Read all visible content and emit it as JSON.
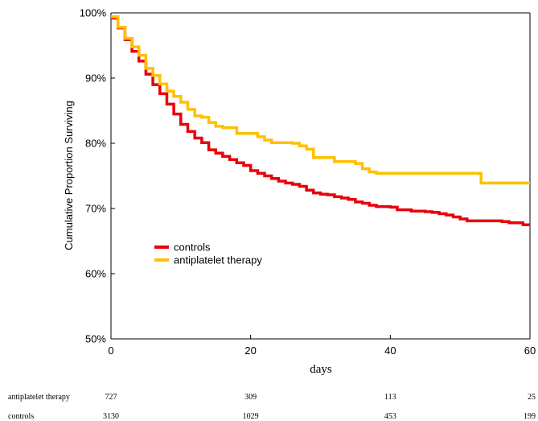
{
  "chart_data": {
    "type": "line",
    "step": true,
    "xlabel": "days",
    "ylabel": "Cumulative Proportion Surviving",
    "xlim": [
      0,
      60
    ],
    "ylim": [
      50,
      100
    ],
    "x_ticks": [
      0,
      20,
      40,
      60
    ],
    "y_ticks": [
      50,
      60,
      70,
      80,
      90,
      100
    ],
    "y_tick_labels": [
      "50%",
      "60%",
      "70%",
      "80%",
      "90%",
      "100%"
    ],
    "grid": false,
    "legend_position": "middle-left",
    "series": [
      {
        "name": "controls",
        "color": "#e8000b",
        "x": [
          0,
          1,
          2,
          3,
          4,
          5,
          6,
          7,
          8,
          9,
          10,
          11,
          12,
          13,
          14,
          15,
          16,
          17,
          18,
          19,
          20,
          21,
          22,
          23,
          24,
          25,
          26,
          27,
          28,
          29,
          30,
          31,
          32,
          33,
          34,
          35,
          36,
          37,
          38,
          40,
          41,
          43,
          45,
          46,
          47,
          48,
          49,
          50,
          51,
          56,
          57,
          59,
          60
        ],
        "y": [
          99.2,
          97.7,
          95.9,
          94.1,
          92.6,
          90.6,
          89.0,
          87.6,
          86.0,
          84.5,
          82.9,
          81.8,
          80.8,
          80.1,
          79.0,
          78.5,
          78.0,
          77.5,
          77.0,
          76.6,
          75.8,
          75.4,
          75.0,
          74.6,
          74.2,
          73.9,
          73.7,
          73.4,
          72.8,
          72.4,
          72.2,
          72.1,
          71.8,
          71.6,
          71.4,
          71.0,
          70.8,
          70.5,
          70.3,
          70.2,
          69.8,
          69.6,
          69.5,
          69.4,
          69.2,
          69.0,
          68.7,
          68.4,
          68.1,
          68.0,
          67.8,
          67.5,
          67.5
        ]
      },
      {
        "name": "antiplatelet therapy",
        "color": "#ffc000",
        "x": [
          0,
          1,
          2,
          3,
          4,
          5,
          6,
          7,
          8,
          9,
          10,
          11,
          12,
          13,
          14,
          15,
          16,
          18,
          21,
          22,
          23,
          26,
          27,
          28,
          29,
          32,
          35,
          36,
          37,
          38,
          41,
          53,
          60
        ],
        "y": [
          99.4,
          97.8,
          96.1,
          94.8,
          93.5,
          91.5,
          90.4,
          89.1,
          88.0,
          87.2,
          86.3,
          85.2,
          84.2,
          84.0,
          83.2,
          82.6,
          82.4,
          81.5,
          81.0,
          80.5,
          80.1,
          80.0,
          79.6,
          79.1,
          77.8,
          77.2,
          76.9,
          76.1,
          75.6,
          75.4,
          75.4,
          73.9,
          73.9
        ]
      }
    ],
    "number_at_risk": {
      "x": [
        0,
        20,
        40,
        60
      ],
      "rows": [
        {
          "label": "antiplatelet therapy",
          "values": [
            "727",
            "309",
            "113",
            "25"
          ]
        },
        {
          "label": "controls",
          "values": [
            "3130",
            "1029",
            "453",
            "199"
          ]
        }
      ]
    }
  }
}
